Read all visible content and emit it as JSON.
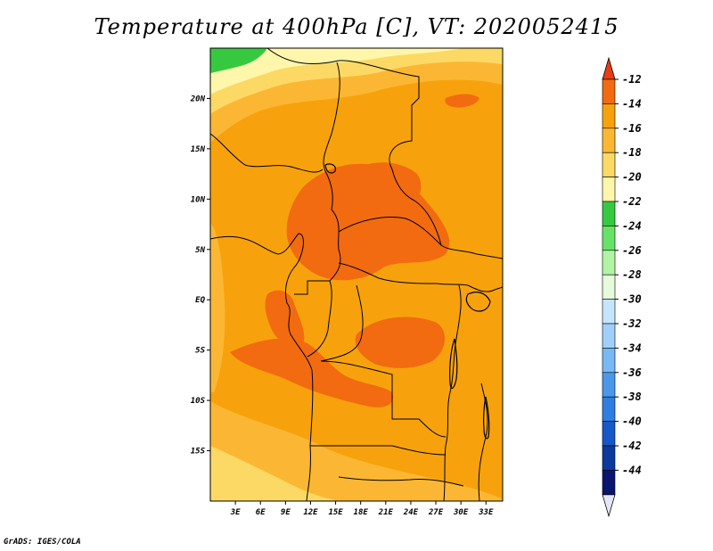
{
  "title": "Temperature at 400hPa [C], VT: 2020052415",
  "credit": "GrADS: IGES/COLA",
  "map": {
    "lat_labels": [
      {
        "label": "20N",
        "lat": 20
      },
      {
        "label": "15N",
        "lat": 15
      },
      {
        "label": "10N",
        "lat": 10
      },
      {
        "label": "5N",
        "lat": 5
      },
      {
        "label": "EQ",
        "lat": 0
      },
      {
        "label": "5S",
        "lat": -5
      },
      {
        "label": "10S",
        "lat": -10
      },
      {
        "label": "15S",
        "lat": -15
      }
    ],
    "lon_labels": [
      {
        "label": "3E",
        "lon": 3
      },
      {
        "label": "6E",
        "lon": 6
      },
      {
        "label": "9E",
        "lon": 9
      },
      {
        "label": "12E",
        "lon": 12
      },
      {
        "label": "15E",
        "lon": 15
      },
      {
        "label": "18E",
        "lon": 18
      },
      {
        "label": "21E",
        "lon": 21
      },
      {
        "label": "24E",
        "lon": 24
      },
      {
        "label": "27E",
        "lon": 27
      },
      {
        "label": "30E",
        "lon": 30
      },
      {
        "label": "33E",
        "lon": 33
      }
    ],
    "extent": {
      "lon_min": 0,
      "lon_max": 35,
      "lat_min": -20,
      "lat_max": 25
    }
  },
  "colorbar": {
    "labels": [
      "-12",
      "-14",
      "-16",
      "-18",
      "-20",
      "-22",
      "-24",
      "-26",
      "-28",
      "-30",
      "-32",
      "-34",
      "-36",
      "-38",
      "-40",
      "-42",
      "-44"
    ],
    "top_arrow_color": "#e83c12",
    "bottom_arrow_color": "#e6e6fa",
    "bands": [
      "#f26b10",
      "#f7a20c",
      "#fbb734",
      "#fcd964",
      "#fef6aa",
      "#36c940",
      "#66e366",
      "#b1f4a4",
      "#e6fadc",
      "#c5e5fd",
      "#a0d0fa",
      "#78b8f5",
      "#4b98eb",
      "#2f7ee3",
      "#1658c8",
      "#0b3a9c",
      "#0a1570"
    ]
  }
}
